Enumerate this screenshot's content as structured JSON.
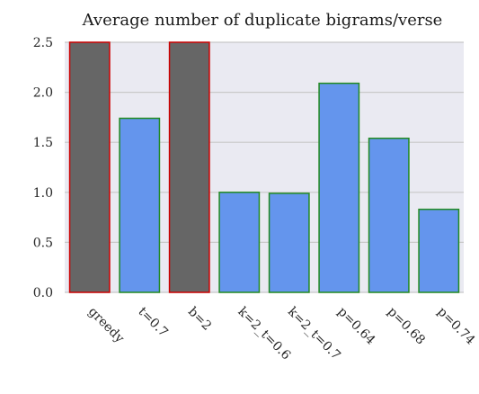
{
  "chart_data": {
    "type": "bar",
    "title": "Average number of duplicate bigrams/verse",
    "xlabel": "",
    "ylabel": "",
    "categories": [
      "greedy",
      "t=0.7",
      "b=2",
      "k=2_t=0.6",
      "k=2_t=0.7",
      "p=0.64",
      "p=0.68",
      "p=0.74"
    ],
    "values": [
      2.5,
      1.74,
      2.5,
      1.0,
      0.99,
      2.09,
      1.54,
      0.83
    ],
    "highlighted": [
      true,
      false,
      true,
      false,
      false,
      false,
      false,
      false
    ],
    "ylim": [
      0,
      2.5
    ],
    "yticks": [
      "0.0",
      "0.5",
      "1.0",
      "1.5",
      "2.0",
      "2.5"
    ],
    "grid": true,
    "legend": "none",
    "colors": {
      "background": "#eaeaf2",
      "grid": "#ffffff",
      "bar_fill": "#6495ed",
      "bar_edge": "#228b22",
      "highlight_fill": "#666666",
      "highlight_edge": "#cc0000"
    }
  }
}
